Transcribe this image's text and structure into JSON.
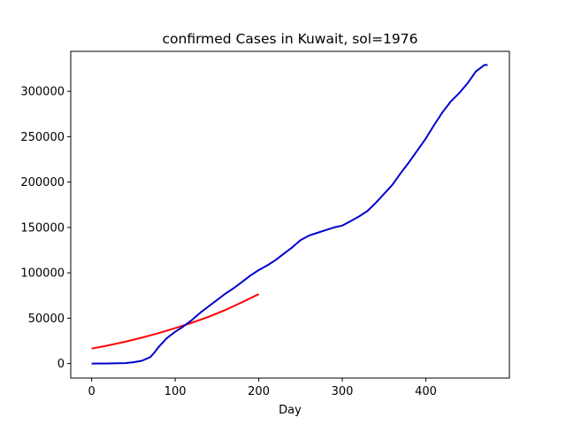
{
  "chart_data": {
    "type": "line",
    "title": "confirmed Cases in Kuwait, sol=1976",
    "xlabel": "Day",
    "ylabel": "",
    "xlim": [
      -25,
      500
    ],
    "ylim": [
      -16000,
      344000
    ],
    "xticks": [
      0,
      100,
      200,
      300,
      400
    ],
    "yticks": [
      0,
      50000,
      100000,
      150000,
      200000,
      250000,
      300000
    ],
    "grid": false,
    "series": [
      {
        "color": "#ff0000",
        "x": [
          0,
          20,
          40,
          60,
          80,
          100,
          120,
          140,
          160,
          180,
          200
        ],
        "y": [
          16500,
          20000,
          24000,
          28500,
          33500,
          39000,
          45000,
          51500,
          59000,
          67500,
          76500
        ]
      },
      {
        "color": "#0000cd",
        "x": [
          0,
          20,
          40,
          50,
          60,
          70,
          75,
          80,
          90,
          100,
          110,
          120,
          130,
          140,
          150,
          160,
          170,
          180,
          190,
          200,
          210,
          220,
          230,
          240,
          250,
          260,
          270,
          280,
          290,
          300,
          310,
          320,
          330,
          340,
          350,
          360,
          370,
          380,
          390,
          400,
          410,
          420,
          430,
          440,
          450,
          460,
          470,
          474
        ],
        "y": [
          0,
          100,
          500,
          1500,
          3000,
          7000,
          12000,
          18000,
          28000,
          35000,
          41000,
          48000,
          56000,
          63000,
          70000,
          77000,
          83000,
          90000,
          97000,
          103000,
          108000,
          114000,
          121000,
          128000,
          136000,
          141000,
          144000,
          147000,
          150000,
          152000,
          157000,
          162000,
          168000,
          177000,
          187000,
          197000,
          210000,
          222000,
          235000,
          248000,
          263000,
          277000,
          289000,
          298000,
          309000,
          322000,
          329000,
          329000
        ]
      }
    ]
  }
}
